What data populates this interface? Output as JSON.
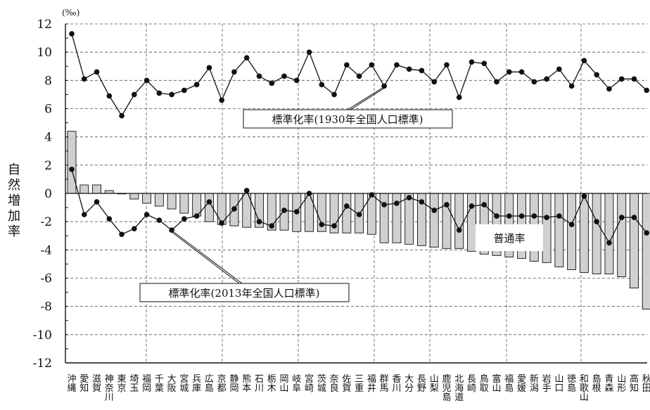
{
  "chart_data": {
    "type": "bar",
    "unit": "(‰)",
    "ylabel": [
      "自",
      "然",
      "増",
      "加",
      "率"
    ],
    "ylim": [
      -12,
      12
    ],
    "yticks": [
      12,
      10,
      8,
      6,
      4,
      2,
      0,
      -2,
      -4,
      -6,
      -8,
      -10,
      -12
    ],
    "grid": true,
    "categories": [
      [
        "沖",
        "縄"
      ],
      [
        "愛",
        "知"
      ],
      [
        "滋",
        "賀"
      ],
      [
        "神",
        "奈",
        "川"
      ],
      [
        "東",
        "京"
      ],
      [
        "埼",
        "玉"
      ],
      [
        "福",
        "岡"
      ],
      [
        "千",
        "葉"
      ],
      [
        "大",
        "阪"
      ],
      [
        "宮",
        "城"
      ],
      [
        "兵",
        "庫"
      ],
      [
        "広",
        "島"
      ],
      [
        "京",
        "都"
      ],
      [
        "静",
        "岡"
      ],
      [
        "熊",
        "本"
      ],
      [
        "石",
        "川"
      ],
      [
        "栃",
        "木"
      ],
      [
        "岡",
        "山"
      ],
      [
        "岐",
        "阜"
      ],
      [
        "宮",
        "崎"
      ],
      [
        "茨",
        "城"
      ],
      [
        "奈",
        "良"
      ],
      [
        "佐",
        "賀"
      ],
      [
        "三",
        "重"
      ],
      [
        "福",
        "井"
      ],
      [
        "群",
        "馬"
      ],
      [
        "香",
        "川"
      ],
      [
        "大",
        "分"
      ],
      [
        "長",
        "野"
      ],
      [
        "山",
        "梨"
      ],
      [
        "鹿",
        "児",
        "島"
      ],
      [
        "北",
        "海",
        "道"
      ],
      [
        "長",
        "崎"
      ],
      [
        "鳥",
        "取"
      ],
      [
        "富",
        "山"
      ],
      [
        "福",
        "島"
      ],
      [
        "愛",
        "媛"
      ],
      [
        "新",
        "潟"
      ],
      [
        "岩",
        "手"
      ],
      [
        "山",
        "口"
      ],
      [
        "徳",
        "島"
      ],
      [
        "和",
        "歌",
        "山"
      ],
      [
        "島",
        "根"
      ],
      [
        "青",
        "森"
      ],
      [
        "山",
        "形"
      ],
      [
        "高",
        "知"
      ],
      [
        "秋",
        "田"
      ]
    ],
    "series": [
      {
        "name": "普通率",
        "kind": "bar",
        "values": [
          4.4,
          0.6,
          0.6,
          0.2,
          0.0,
          -0.4,
          -0.7,
          -0.9,
          -1.1,
          -1.4,
          -1.6,
          -2.0,
          -2.2,
          -2.3,
          -2.4,
          -2.4,
          -2.6,
          -2.6,
          -2.7,
          -2.7,
          -2.7,
          -2.8,
          -2.8,
          -2.8,
          -2.9,
          -3.5,
          -3.5,
          -3.6,
          -3.7,
          -3.8,
          -3.9,
          -3.9,
          -4.1,
          -4.3,
          -4.4,
          -4.5,
          -4.6,
          -4.8,
          -4.9,
          -5.2,
          -5.4,
          -5.6,
          -5.7,
          -5.7,
          -5.9,
          -6.7,
          -8.2
        ]
      },
      {
        "name": "標準化率(1930年全国人口標準)",
        "kind": "line",
        "values": [
          11.3,
          8.1,
          8.6,
          6.9,
          5.5,
          7.0,
          8.0,
          7.1,
          7.0,
          7.3,
          7.7,
          8.9,
          6.6,
          8.6,
          9.6,
          8.3,
          7.8,
          8.3,
          8.0,
          10.0,
          7.7,
          7.0,
          9.1,
          8.3,
          9.1,
          7.6,
          9.1,
          8.8,
          8.7,
          7.9,
          9.1,
          6.8,
          9.3,
          9.2,
          7.9,
          8.6,
          8.6,
          7.9,
          8.1,
          8.8,
          7.6,
          9.4,
          8.4,
          7.4,
          8.1,
          8.1,
          7.3
        ]
      },
      {
        "name": "標準化率(2013年全国人口標準)",
        "kind": "line",
        "values": [
          1.7,
          -1.5,
          -0.6,
          -1.8,
          -2.9,
          -2.5,
          -1.5,
          -1.9,
          -2.6,
          -1.8,
          -1.6,
          -0.6,
          -2.1,
          -1.1,
          0.2,
          -2.0,
          -2.3,
          -1.2,
          -1.3,
          0.0,
          -2.2,
          -2.3,
          -0.9,
          -1.5,
          -0.1,
          -0.8,
          -0.7,
          -0.3,
          -0.6,
          -1.2,
          -0.8,
          -2.6,
          -0.9,
          -0.8,
          -1.6,
          -1.6,
          -1.6,
          -1.6,
          -1.7,
          -1.6,
          -2.2,
          -0.2,
          -2.0,
          -3.5,
          -1.7,
          -1.7,
          -2.8
        ]
      }
    ],
    "annotations": [
      {
        "text": "標準化率(1930年全国人口標準)",
        "target_series": 1
      },
      {
        "text": "標準化率(2013年全国人口標準)",
        "target_series": 2
      },
      {
        "text": "普通率",
        "target_series": 0
      }
    ]
  }
}
